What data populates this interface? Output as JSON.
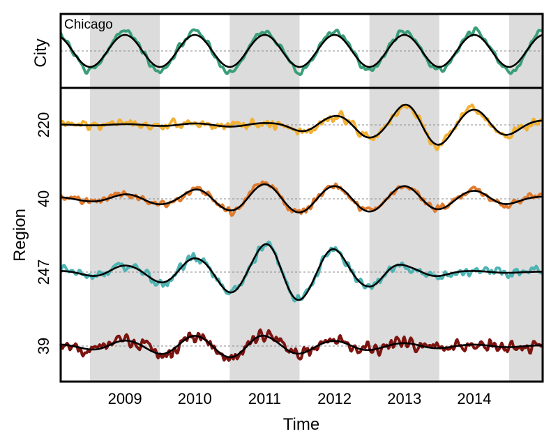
{
  "chart_data": {
    "type": "line",
    "xlabel": "Time",
    "x_ticks": [
      "2009",
      "2010",
      "2011",
      "2012",
      "2013",
      "2014"
    ],
    "x_range": [
      2008.08,
      2014.98
    ],
    "shaded_years": [
      [
        2008.5,
        2009.5
      ],
      [
        2010.5,
        2011.5
      ],
      [
        2012.5,
        2013.5
      ],
      [
        2014.5,
        2014.98
      ]
    ],
    "shade_color": "#dcdcdc",
    "grid": false,
    "top_panel": {
      "ylabel": "City",
      "annotation": "Chicago",
      "series": [
        {
          "color": "#3a9e78",
          "kind": "observed",
          "seed": 3,
          "amp": 1.0,
          "noise": 0.22
        },
        {
          "color": "#000000",
          "kind": "smooth",
          "amp": 0.82
        }
      ]
    },
    "bottom_panel": {
      "ylabel": "Region",
      "tick_labels": [
        "220",
        "40",
        "247",
        "39"
      ],
      "series": [
        {
          "name": "220",
          "color": "#f2b134",
          "seed": 11,
          "envelope_t": [
            2008.08,
            2011.0,
            2011.8,
            2012.5,
            2013.2,
            2014.0,
            2014.98
          ],
          "envelope_a": [
            0.01,
            0.05,
            0.22,
            0.35,
            0.6,
            0.42,
            0.12
          ],
          "noise": 0.18
        },
        {
          "name": "40",
          "color": "#e07b2e",
          "seed": 23,
          "envelope_t": [
            2008.08,
            2009.5,
            2010.3,
            2011.0,
            2012.0,
            2013.0,
            2014.0,
            2014.98
          ],
          "envelope_a": [
            0.05,
            0.15,
            0.3,
            0.4,
            0.35,
            0.35,
            0.22,
            0.06
          ],
          "noise": 0.14
        },
        {
          "name": "247",
          "color": "#4fb3b3",
          "seed": 37,
          "envelope_t": [
            2008.08,
            2009.0,
            2010.0,
            2010.7,
            2011.2,
            2011.8,
            2012.5,
            2013.2,
            2014.0,
            2014.98
          ],
          "envelope_a": [
            0.04,
            0.18,
            0.38,
            0.6,
            0.85,
            0.68,
            0.4,
            0.14,
            0.03,
            0.01
          ],
          "noise": 0.16
        },
        {
          "name": "39",
          "color": "#7c1410",
          "seed": 51,
          "envelope_t": [
            2008.08,
            2009.0,
            2010.0,
            2010.8,
            2011.2,
            2012.0,
            2013.0,
            2014.0,
            2014.98
          ],
          "envelope_a": [
            0.05,
            0.15,
            0.28,
            0.32,
            0.24,
            0.14,
            0.08,
            0.04,
            0.02
          ],
          "noise": 0.22
        }
      ]
    }
  }
}
